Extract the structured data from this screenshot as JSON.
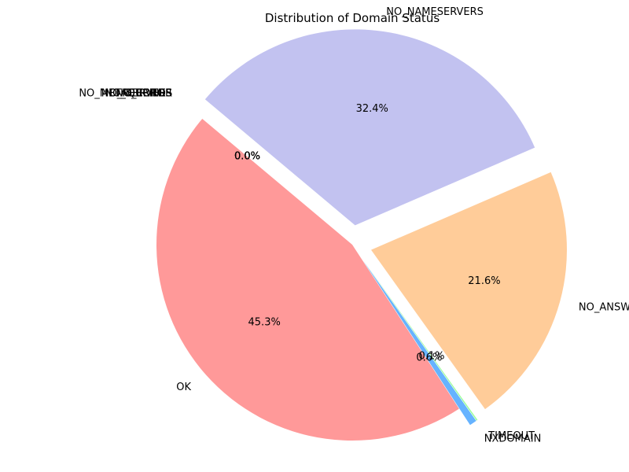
{
  "chart_data": {
    "type": "pie",
    "title": "Distribution of Domain Status",
    "slices": [
      {
        "label": "OK",
        "value": 45.3,
        "pct_label": "45.3%",
        "color": "#ff9999",
        "exploded": false
      },
      {
        "label": "NXDOMAIN",
        "value": 0.6,
        "pct_label": "0.6%",
        "color": "#66b3ff",
        "exploded": true
      },
      {
        "label": "TIMEOUT",
        "value": 0.1,
        "pct_label": "0.1%",
        "color": "#99ff99",
        "exploded": true
      },
      {
        "label": "NO_ANSWER",
        "value": 21.6,
        "pct_label": "21.6%",
        "color": "#ffcc99",
        "exploded": true
      },
      {
        "label": "NO_NAMESERVERS",
        "value": 32.4,
        "pct_label": "32.4%",
        "color": "#c2c2f0",
        "exploded": true
      },
      {
        "label": "NO_METAQUERIES",
        "value": 0.0,
        "pct_label": "0.0%",
        "color": "#ffb3e6",
        "exploded": true
      },
      {
        "label": "NO_RECORDS",
        "value": 0.0,
        "pct_label": "0.0%",
        "color": "#c4e17f",
        "exploded": true
      },
      {
        "label": "NO_SERVERS",
        "value": 0.0,
        "pct_label": "0.0%",
        "color": "#76d7c4",
        "exploded": true
      },
      {
        "label": "NO_ERROR",
        "value": 0.0,
        "pct_label": "0.0%",
        "color": "#f7dc6f",
        "exploded": true
      }
    ]
  }
}
